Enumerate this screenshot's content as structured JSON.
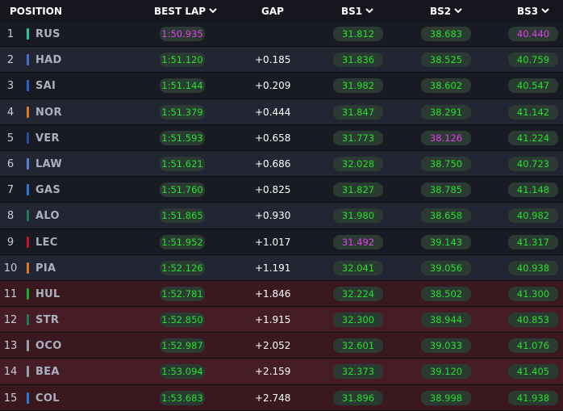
{
  "header": {
    "position": "POSITION",
    "best_lap": "BEST LAP",
    "gap": "GAP",
    "bs1": "BS1",
    "bs2": "BS2",
    "bs3": "BS3"
  },
  "colors": {
    "green": "#25e02a",
    "purple": "#e040e8"
  },
  "rows": [
    {
      "pos": "1",
      "code": "RUS",
      "team_color": "#27c4a8",
      "lap": "1:50.935",
      "lap_c": "purple",
      "gap": "",
      "bs1": "31.812",
      "bs1_c": "green",
      "bs2": "38.683",
      "bs2_c": "green",
      "bs3": "40.440",
      "bs3_c": "purple",
      "elim": false
    },
    {
      "pos": "2",
      "code": "HAD",
      "team_color": "#4a6bd8",
      "lap": "1:51.120",
      "lap_c": "green",
      "gap": "+0.185",
      "bs1": "31.836",
      "bs1_c": "green",
      "bs2": "38.525",
      "bs2_c": "green",
      "bs3": "40.759",
      "bs3_c": "green",
      "elim": false
    },
    {
      "pos": "3",
      "code": "SAI",
      "team_color": "#2a5fc8",
      "lap": "1:51.144",
      "lap_c": "green",
      "gap": "+0.209",
      "bs1": "31.982",
      "bs1_c": "green",
      "bs2": "38.602",
      "bs2_c": "green",
      "bs3": "40.547",
      "bs3_c": "green",
      "elim": false
    },
    {
      "pos": "4",
      "code": "NOR",
      "team_color": "#e07a1a",
      "lap": "1:51.379",
      "lap_c": "green",
      "gap": "+0.444",
      "bs1": "31.847",
      "bs1_c": "green",
      "bs2": "38.291",
      "bs2_c": "green",
      "bs3": "41.142",
      "bs3_c": "green",
      "elim": false
    },
    {
      "pos": "5",
      "code": "VER",
      "team_color": "#2b4fa0",
      "lap": "1:51.593",
      "lap_c": "green",
      "gap": "+0.658",
      "bs1": "31.773",
      "bs1_c": "green",
      "bs2": "38.126",
      "bs2_c": "purple",
      "bs3": "41.224",
      "bs3_c": "green",
      "elim": false
    },
    {
      "pos": "6",
      "code": "LAW",
      "team_color": "#5a7fd0",
      "lap": "1:51.621",
      "lap_c": "green",
      "gap": "+0.686",
      "bs1": "32.028",
      "bs1_c": "green",
      "bs2": "38.750",
      "bs2_c": "green",
      "bs3": "40.723",
      "bs3_c": "green",
      "elim": false
    },
    {
      "pos": "7",
      "code": "GAS",
      "team_color": "#2a78d8",
      "lap": "1:51.760",
      "lap_c": "green",
      "gap": "+0.825",
      "bs1": "31.827",
      "bs1_c": "green",
      "bs2": "38.785",
      "bs2_c": "green",
      "bs3": "41.148",
      "bs3_c": "green",
      "elim": false
    },
    {
      "pos": "8",
      "code": "ALO",
      "team_color": "#1f7a55",
      "lap": "1:51.865",
      "lap_c": "green",
      "gap": "+0.930",
      "bs1": "31.980",
      "bs1_c": "green",
      "bs2": "38.658",
      "bs2_c": "green",
      "bs3": "40.982",
      "bs3_c": "green",
      "elim": false
    },
    {
      "pos": "9",
      "code": "LEC",
      "team_color": "#c8102e",
      "lap": "1:51.952",
      "lap_c": "green",
      "gap": "+1.017",
      "bs1": "31.492",
      "bs1_c": "purple",
      "bs2": "39.143",
      "bs2_c": "green",
      "bs3": "41.317",
      "bs3_c": "green",
      "elim": false
    },
    {
      "pos": "10",
      "code": "PIA",
      "team_color": "#e07a1a",
      "lap": "1:52.126",
      "lap_c": "green",
      "gap": "+1.191",
      "bs1": "32.041",
      "bs1_c": "green",
      "bs2": "39.056",
      "bs2_c": "green",
      "bs3": "40.938",
      "bs3_c": "green",
      "elim": false
    },
    {
      "pos": "11",
      "code": "HUL",
      "team_color": "#17b02a",
      "lap": "1:52.781",
      "lap_c": "green",
      "gap": "+1.846",
      "bs1": "32.224",
      "bs1_c": "green",
      "bs2": "38.502",
      "bs2_c": "green",
      "bs3": "41.300",
      "bs3_c": "green",
      "elim": true
    },
    {
      "pos": "12",
      "code": "STR",
      "team_color": "#1f7a55",
      "lap": "1:52.850",
      "lap_c": "green",
      "gap": "+1.915",
      "bs1": "32.300",
      "bs1_c": "green",
      "bs2": "38.944",
      "bs2_c": "green",
      "bs3": "40.853",
      "bs3_c": "green",
      "elim": true
    },
    {
      "pos": "13",
      "code": "OCO",
      "team_color": "#9aa0aa",
      "lap": "1:52.987",
      "lap_c": "green",
      "gap": "+2.052",
      "bs1": "32.601",
      "bs1_c": "green",
      "bs2": "39.033",
      "bs2_c": "green",
      "bs3": "41.076",
      "bs3_c": "green",
      "elim": true
    },
    {
      "pos": "14",
      "code": "BEA",
      "team_color": "#9aa0aa",
      "lap": "1:53.094",
      "lap_c": "green",
      "gap": "+2.159",
      "bs1": "32.373",
      "bs1_c": "green",
      "bs2": "39.120",
      "bs2_c": "green",
      "bs3": "41.405",
      "bs3_c": "green",
      "elim": true
    },
    {
      "pos": "15",
      "code": "COL",
      "team_color": "#2a78d8",
      "lap": "1:53.683",
      "lap_c": "green",
      "gap": "+2.748",
      "bs1": "31.896",
      "bs1_c": "green",
      "bs2": "38.998",
      "bs2_c": "green",
      "bs3": "41.938",
      "bs3_c": "green",
      "elim": true
    }
  ]
}
